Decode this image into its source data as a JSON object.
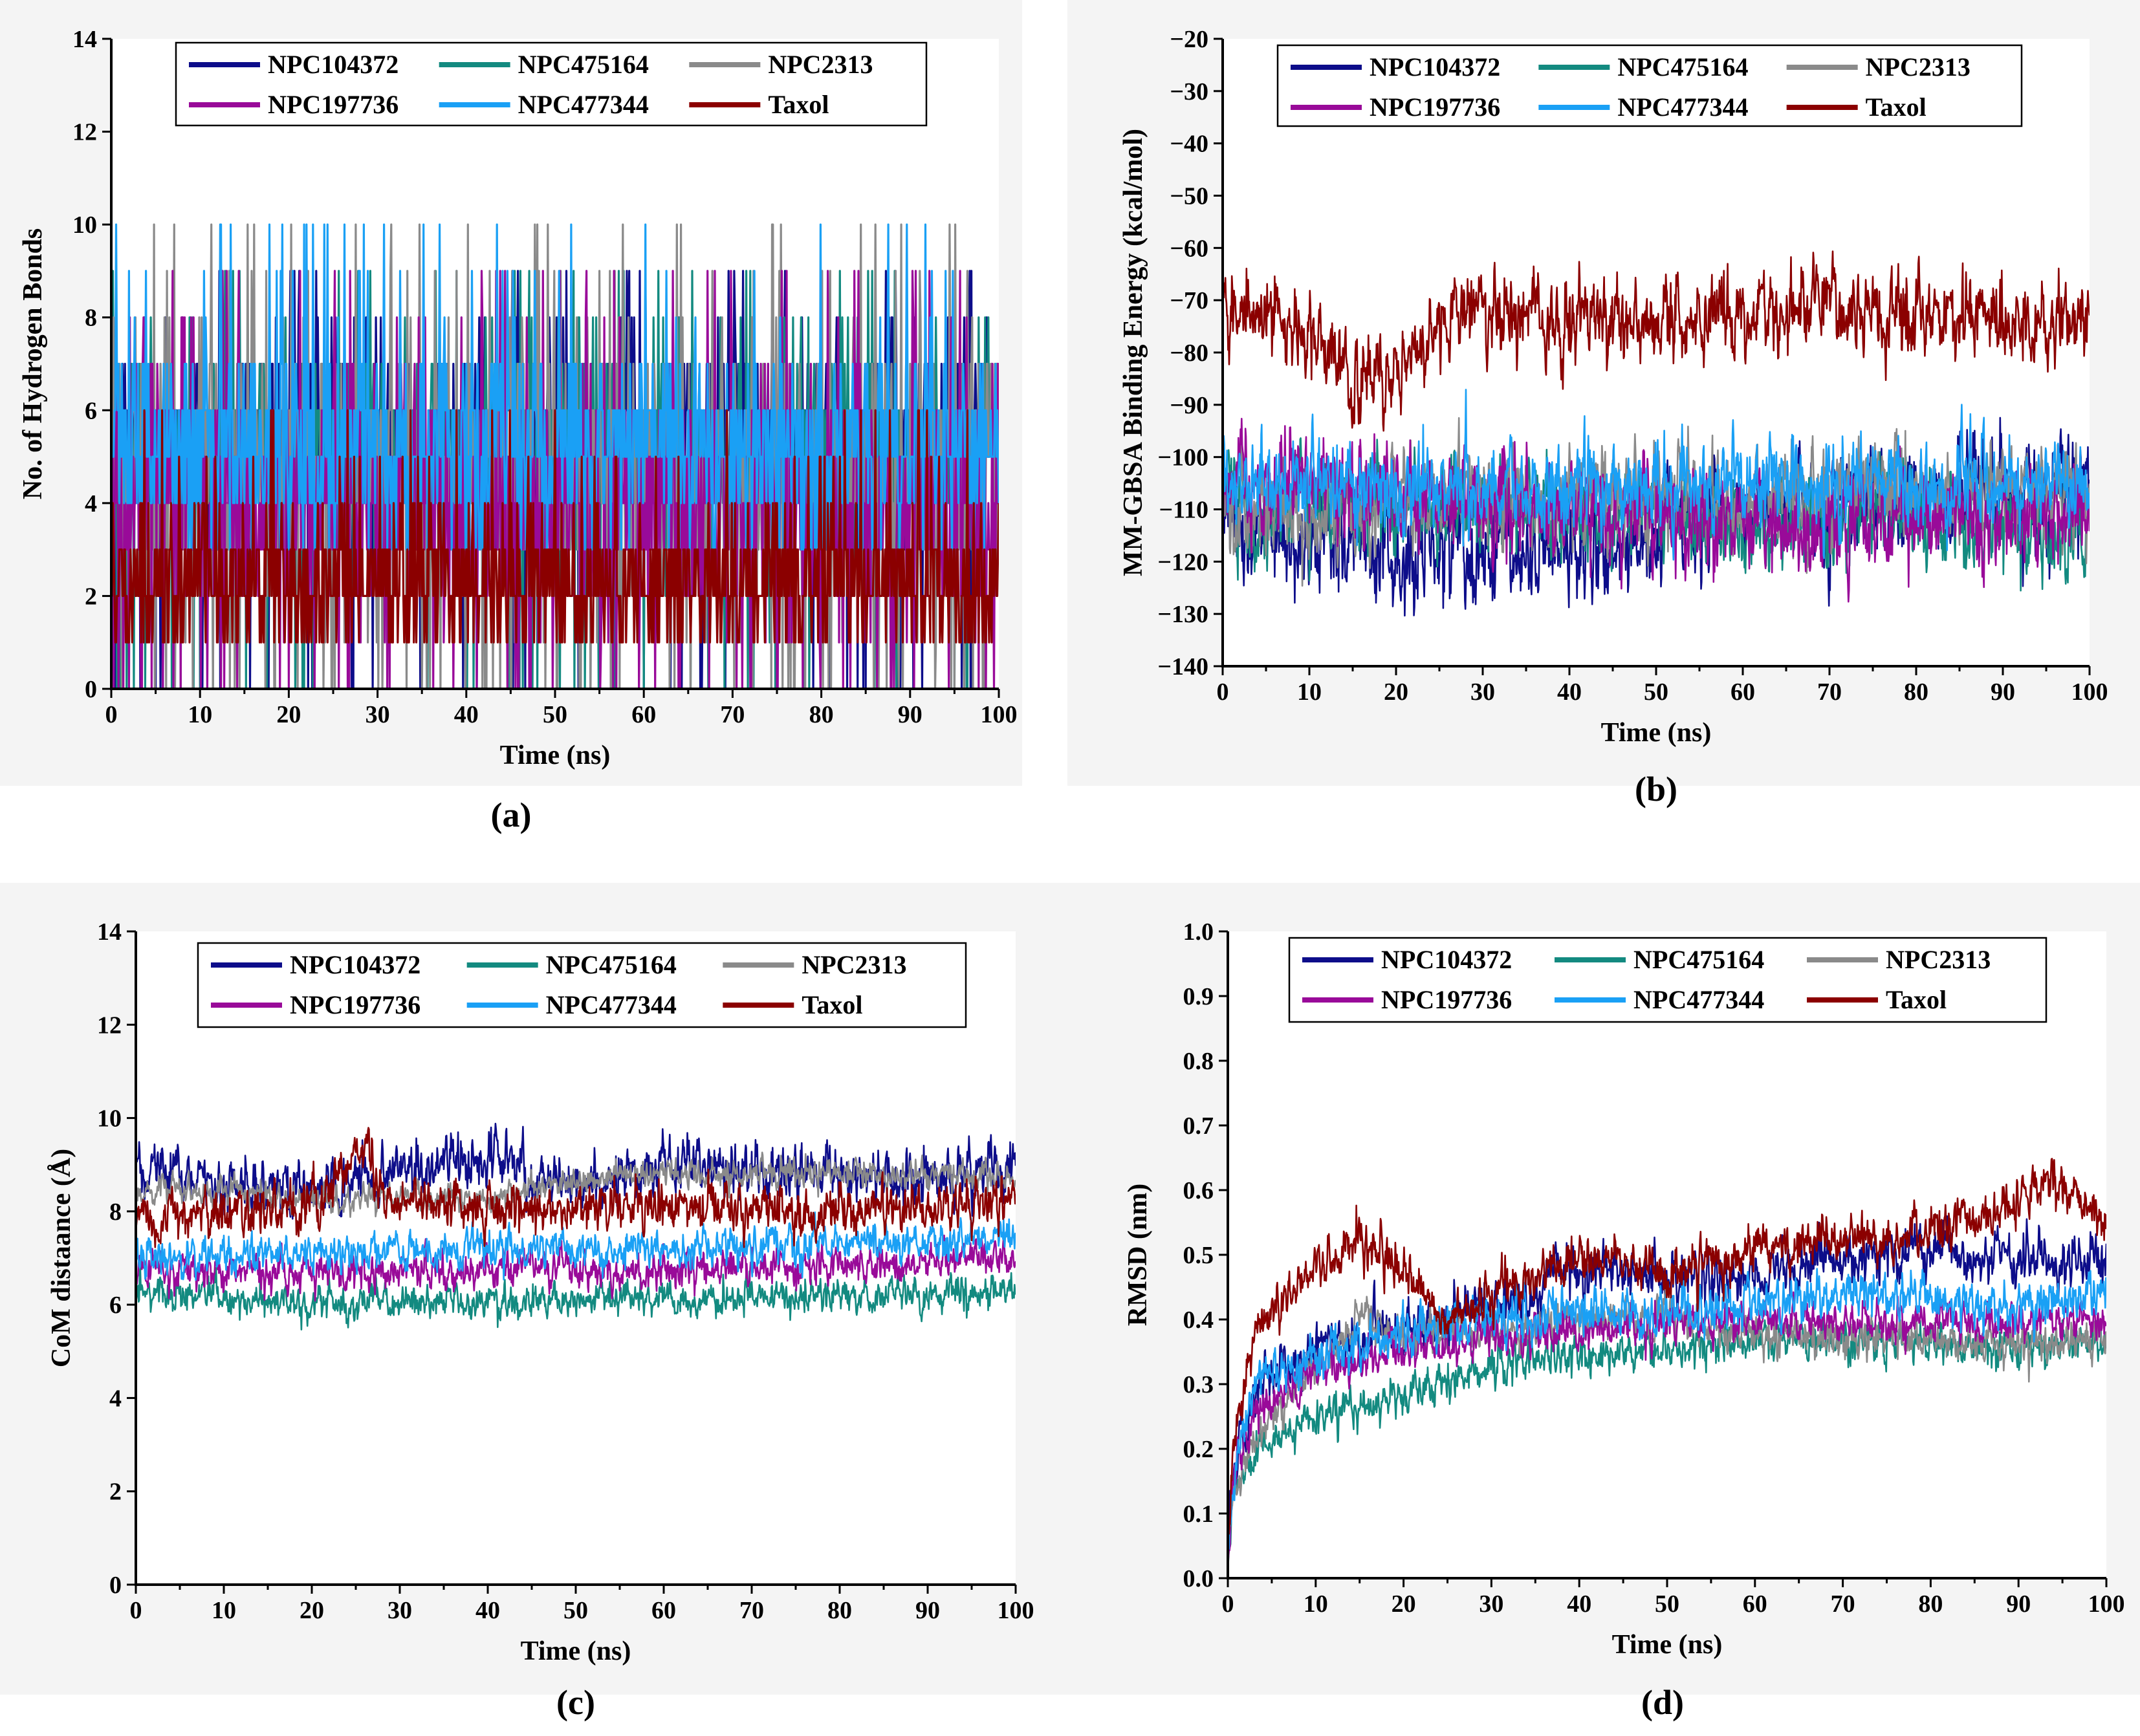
{
  "figure": {
    "series_colors": {
      "NPC104372": "#0d0d8a",
      "NPC475164": "#138a80",
      "NPC2313": "#8a8a8a",
      "NPC197736": "#990a99",
      "NPC477344": "#1aa0f5",
      "Taxol": "#8b0000"
    }
  },
  "chart_data": [
    {
      "id": "a",
      "type": "line",
      "caption": "(a)",
      "title": "",
      "xlabel": "Time (ns)",
      "ylabel": "No. of Hydrogen Bonds",
      "xlim": [
        0,
        100
      ],
      "ylim": [
        0,
        14
      ],
      "xticks": [
        0,
        10,
        20,
        30,
        40,
        50,
        60,
        70,
        80,
        90,
        100
      ],
      "yticks": [
        0,
        2,
        4,
        6,
        8,
        10,
        12,
        14
      ],
      "legend": [
        [
          "NPC104372",
          "NPC475164",
          "NPC2313"
        ],
        [
          "NPC197736",
          "NPC477344",
          "Taxol"
        ]
      ],
      "series": [
        {
          "name": "NPC104372",
          "mean": 5.5,
          "noise": 1.0,
          "min": 0,
          "max": 9,
          "discrete": true,
          "x": [
            0,
            100
          ]
        },
        {
          "name": "NPC475164",
          "mean": 5.0,
          "noise": 1.1,
          "min": 0,
          "max": 9,
          "discrete": true,
          "x": [
            0,
            100
          ]
        },
        {
          "name": "NPC2313",
          "mean": 4.5,
          "noise": 1.6,
          "min": 0,
          "max": 10,
          "discrete": true,
          "x": [
            0,
            100
          ]
        },
        {
          "name": "NPC197736",
          "mean": 4.0,
          "noise": 1.4,
          "min": 0,
          "max": 9,
          "discrete": true,
          "x": [
            0,
            100
          ]
        },
        {
          "name": "NPC477344",
          "mean": 5.2,
          "noise": 1.0,
          "min": 3,
          "max": 10,
          "discrete": true,
          "x": [
            0,
            100
          ]
        },
        {
          "name": "Taxol",
          "mean": 2.3,
          "noise": 0.8,
          "min": 1,
          "max": 6,
          "discrete": true,
          "x": [
            0,
            100
          ]
        }
      ]
    },
    {
      "id": "b",
      "type": "line",
      "caption": "(b)",
      "title": "",
      "xlabel": "Time (ns)",
      "ylabel": "MM-GBSA Binding Energy (kcal/mol)",
      "xlim": [
        0,
        100
      ],
      "ylim": [
        -140,
        -20
      ],
      "xticks": [
        0,
        10,
        20,
        30,
        40,
        50,
        60,
        70,
        80,
        90,
        100
      ],
      "yticks": [
        -140,
        -130,
        -120,
        -110,
        -100,
        -90,
        -80,
        -70,
        -60,
        -50,
        -40,
        -30,
        -20
      ],
      "legend": [
        [
          "NPC104372",
          "NPC475164",
          "NPC2313"
        ],
        [
          "NPC197736",
          "NPC477344",
          "Taxol"
        ]
      ],
      "series": [
        {
          "name": "NPC104372",
          "points": [
            [
              0,
              -112
            ],
            [
              10,
              -118
            ],
            [
              20,
              -118
            ],
            [
              30,
              -117
            ],
            [
              40,
              -117
            ],
            [
              50,
              -116
            ],
            [
              60,
              -110
            ],
            [
              70,
              -110
            ],
            [
              80,
              -108
            ],
            [
              90,
              -106
            ],
            [
              100,
              -108
            ]
          ],
          "noise": 5.0
        },
        {
          "name": "NPC475164",
          "points": [
            [
              0,
              -108
            ],
            [
              10,
              -110
            ],
            [
              20,
              -110
            ],
            [
              40,
              -110
            ],
            [
              60,
              -112
            ],
            [
              80,
              -112
            ],
            [
              100,
              -116
            ]
          ],
          "noise": 4.5
        },
        {
          "name": "NPC2313",
          "points": [
            [
              0,
              -110
            ],
            [
              10,
              -112
            ],
            [
              20,
              -108
            ],
            [
              40,
              -108
            ],
            [
              60,
              -108
            ],
            [
              80,
              -106
            ],
            [
              100,
              -106
            ]
          ],
          "noise": 4.5
        },
        {
          "name": "NPC197736",
          "points": [
            [
              0,
              -105
            ],
            [
              10,
              -104
            ],
            [
              20,
              -108
            ],
            [
              40,
              -110
            ],
            [
              60,
              -112
            ],
            [
              80,
              -112
            ],
            [
              100,
              -112
            ]
          ],
          "noise": 4.5
        },
        {
          "name": "NPC477344",
          "points": [
            [
              0,
              -104
            ],
            [
              10,
              -106
            ],
            [
              20,
              -106
            ],
            [
              40,
              -106
            ],
            [
              60,
              -105
            ],
            [
              80,
              -105
            ],
            [
              100,
              -105
            ]
          ],
          "noise": 4.0
        },
        {
          "name": "Taxol",
          "points": [
            [
              0,
              -70
            ],
            [
              5,
              -73
            ],
            [
              10,
              -76
            ],
            [
              15,
              -85
            ],
            [
              20,
              -84
            ],
            [
              25,
              -74
            ],
            [
              30,
              -72
            ],
            [
              50,
              -75
            ],
            [
              60,
              -73
            ],
            [
              80,
              -72
            ],
            [
              100,
              -75
            ]
          ],
          "noise": 4.0
        }
      ]
    },
    {
      "id": "c",
      "type": "line",
      "caption": "(c)",
      "title": "",
      "xlabel": "Time (ns)",
      "ylabel": "CoM distaance (Å)",
      "xlim": [
        0,
        100
      ],
      "ylim": [
        0,
        14
      ],
      "xticks": [
        0,
        10,
        20,
        30,
        40,
        50,
        60,
        70,
        80,
        90,
        100
      ],
      "yticks": [
        0,
        2,
        4,
        6,
        8,
        10,
        12,
        14
      ],
      "legend": [
        [
          "NPC104372",
          "NPC475164",
          "NPC2313"
        ],
        [
          "NPC197736",
          "NPC477344",
          "Taxol"
        ]
      ],
      "series": [
        {
          "name": "NPC104372",
          "points": [
            [
              0,
              9.0
            ],
            [
              10,
              8.6
            ],
            [
              20,
              8.5
            ],
            [
              30,
              8.8
            ],
            [
              40,
              9.1
            ],
            [
              50,
              8.5
            ],
            [
              60,
              9.0
            ],
            [
              70,
              8.9
            ],
            [
              80,
              8.8
            ],
            [
              90,
              8.7
            ],
            [
              100,
              9.0
            ]
          ],
          "noise": 0.28
        },
        {
          "name": "NPC475164",
          "points": [
            [
              0,
              6.3
            ],
            [
              20,
              6.0
            ],
            [
              40,
              6.1
            ],
            [
              60,
              6.1
            ],
            [
              80,
              6.2
            ],
            [
              100,
              6.3
            ]
          ],
          "noise": 0.18
        },
        {
          "name": "NPC2313",
          "points": [
            [
              0,
              8.4
            ],
            [
              10,
              8.5
            ],
            [
              20,
              8.2
            ],
            [
              30,
              8.3
            ],
            [
              40,
              8.3
            ],
            [
              50,
              8.7
            ],
            [
              60,
              8.8
            ],
            [
              80,
              8.8
            ],
            [
              100,
              8.7
            ]
          ],
          "noise": 0.15
        },
        {
          "name": "NPC197736",
          "points": [
            [
              0,
              6.8
            ],
            [
              20,
              6.7
            ],
            [
              40,
              6.8
            ],
            [
              60,
              6.7
            ],
            [
              80,
              6.9
            ],
            [
              100,
              7.0
            ]
          ],
          "noise": 0.2
        },
        {
          "name": "NPC477344",
          "points": [
            [
              0,
              7.0
            ],
            [
              20,
              7.1
            ],
            [
              40,
              7.2
            ],
            [
              60,
              7.2
            ],
            [
              80,
              7.3
            ],
            [
              100,
              7.5
            ]
          ],
          "noise": 0.2
        },
        {
          "name": "Taxol",
          "points": [
            [
              0,
              7.8
            ],
            [
              10,
              8.0
            ],
            [
              20,
              8.1
            ],
            [
              26,
              9.4
            ],
            [
              28,
              8.2
            ],
            [
              40,
              8.0
            ],
            [
              60,
              8.1
            ],
            [
              80,
              8.0
            ],
            [
              100,
              8.2
            ]
          ],
          "noise": 0.25
        }
      ]
    },
    {
      "id": "d",
      "type": "line",
      "caption": "(d)",
      "title": "",
      "xlabel": "Time (ns)",
      "ylabel": "RMSD (nm)",
      "xlim": [
        0,
        100
      ],
      "ylim": [
        0,
        1.0
      ],
      "xticks": [
        0,
        10,
        20,
        30,
        40,
        50,
        60,
        70,
        80,
        90,
        100
      ],
      "yticks": [
        0.0,
        0.1,
        0.2,
        0.3,
        0.4,
        0.5,
        0.6,
        0.7,
        0.8,
        0.9,
        1.0
      ],
      "legend": [
        [
          "NPC104372",
          "NPC475164",
          "NPC2313"
        ],
        [
          "NPC197736",
          "NPC477344",
          "Taxol"
        ]
      ],
      "series": [
        {
          "name": "NPC104372",
          "points": [
            [
              0,
              0.0
            ],
            [
              0.5,
              0.15
            ],
            [
              3,
              0.3
            ],
            [
              10,
              0.36
            ],
            [
              20,
              0.38
            ],
            [
              30,
              0.42
            ],
            [
              40,
              0.48
            ],
            [
              50,
              0.46
            ],
            [
              60,
              0.47
            ],
            [
              70,
              0.5
            ],
            [
              80,
              0.5
            ],
            [
              90,
              0.49
            ],
            [
              100,
              0.5
            ]
          ],
          "noise": 0.02
        },
        {
          "name": "NPC475164",
          "points": [
            [
              0,
              0.0
            ],
            [
              0.5,
              0.12
            ],
            [
              3,
              0.2
            ],
            [
              10,
              0.25
            ],
            [
              20,
              0.28
            ],
            [
              30,
              0.33
            ],
            [
              40,
              0.35
            ],
            [
              50,
              0.35
            ],
            [
              60,
              0.37
            ],
            [
              70,
              0.37
            ],
            [
              80,
              0.36
            ],
            [
              90,
              0.36
            ],
            [
              100,
              0.36
            ]
          ],
          "noise": 0.015
        },
        {
          "name": "NPC2313",
          "points": [
            [
              0,
              0.0
            ],
            [
              0.5,
              0.13
            ],
            [
              3,
              0.22
            ],
            [
              10,
              0.32
            ],
            [
              15,
              0.4
            ],
            [
              20,
              0.38
            ],
            [
              30,
              0.38
            ],
            [
              40,
              0.4
            ],
            [
              50,
              0.4
            ],
            [
              60,
              0.38
            ],
            [
              70,
              0.37
            ],
            [
              80,
              0.37
            ],
            [
              90,
              0.36
            ],
            [
              100,
              0.37
            ]
          ],
          "noise": 0.015
        },
        {
          "name": "NPC197736",
          "points": [
            [
              0,
              0.0
            ],
            [
              0.5,
              0.14
            ],
            [
              3,
              0.25
            ],
            [
              10,
              0.32
            ],
            [
              20,
              0.35
            ],
            [
              30,
              0.37
            ],
            [
              40,
              0.38
            ],
            [
              50,
              0.39
            ],
            [
              60,
              0.4
            ],
            [
              70,
              0.4
            ],
            [
              80,
              0.4
            ],
            [
              90,
              0.39
            ],
            [
              100,
              0.4
            ]
          ],
          "noise": 0.015
        },
        {
          "name": "NPC477344",
          "points": [
            [
              0,
              0.0
            ],
            [
              0.5,
              0.15
            ],
            [
              3,
              0.3
            ],
            [
              10,
              0.34
            ],
            [
              20,
              0.38
            ],
            [
              30,
              0.4
            ],
            [
              40,
              0.41
            ],
            [
              50,
              0.41
            ],
            [
              60,
              0.42
            ],
            [
              70,
              0.44
            ],
            [
              80,
              0.43
            ],
            [
              90,
              0.42
            ],
            [
              100,
              0.44
            ]
          ],
          "noise": 0.018
        },
        {
          "name": "Taxol",
          "points": [
            [
              0,
              0.0
            ],
            [
              0.5,
              0.18
            ],
            [
              3,
              0.38
            ],
            [
              10,
              0.48
            ],
            [
              15,
              0.52
            ],
            [
              20,
              0.48
            ],
            [
              25,
              0.4
            ],
            [
              30,
              0.44
            ],
            [
              40,
              0.5
            ],
            [
              50,
              0.47
            ],
            [
              60,
              0.5
            ],
            [
              70,
              0.53
            ],
            [
              80,
              0.53
            ],
            [
              90,
              0.58
            ],
            [
              94,
              0.62
            ],
            [
              100,
              0.55
            ]
          ],
          "noise": 0.018
        }
      ]
    }
  ]
}
